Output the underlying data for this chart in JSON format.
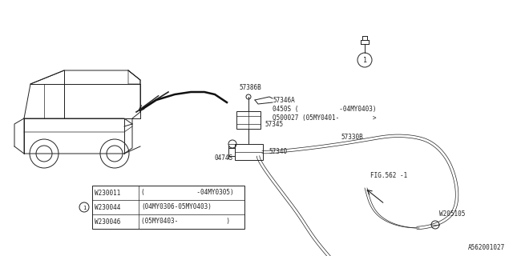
{
  "bg_color": "#ffffff",
  "fig_width": 6.4,
  "fig_height": 3.2,
  "diagram_id": "A562001027",
  "line_color": "#222222",
  "lw": 0.7,
  "thin": 0.5,
  "label_fs": 5.5,
  "table_rows": [
    {
      "c1": "W230011",
      "c2": "(              -04MY0305)"
    },
    {
      "c1": "W230044",
      "c2": "(04MY0306-05MY0403)",
      "circle": true
    },
    {
      "c1": "W230046",
      "c2": "(05MY0403-             )"
    }
  ]
}
